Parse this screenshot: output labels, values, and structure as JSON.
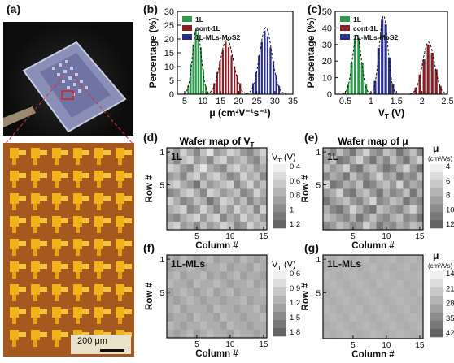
{
  "panel_labels": {
    "a": "(a)",
    "b": "(b)",
    "c": "(c)",
    "d": "(d)",
    "e": "(e)",
    "f": "(f)",
    "g": "(g)"
  },
  "scale_bar": "200 μm",
  "colors": {
    "1L": "#2e9a4a",
    "cont-1L": "#8b1e24",
    "1L-MLs-MoS2": "#2a2f8c"
  },
  "chart_data": [
    {
      "type": "bar",
      "id": "b",
      "xlabel": "μ (cm²V⁻¹s⁻¹)",
      "ylabel": "Percentage (%)",
      "xlim": [
        3,
        35
      ],
      "ylim": [
        0,
        30
      ],
      "xticks": [
        5,
        10,
        15,
        20,
        25,
        30,
        35
      ],
      "yticks": [
        0,
        5,
        10,
        15,
        20,
        25,
        30
      ],
      "legend": [
        "1L",
        "cont-1L",
        "1L-MLs-MoS2"
      ],
      "series": [
        {
          "name": "1L",
          "x": [
            6,
            6.7,
            7.4,
            8.1,
            8.8,
            9.5,
            10.2,
            10.9
          ],
          "values": [
            3,
            11,
            18,
            23,
            22,
            17,
            9,
            3
          ]
        },
        {
          "name": "cont-1L",
          "x": [
            13.2,
            14.0,
            14.8,
            15.6,
            16.4,
            17.2,
            18.0,
            18.8,
            19.6,
            20.4
          ],
          "values": [
            4,
            8,
            12,
            16,
            19,
            17,
            14,
            10,
            7,
            4
          ]
        },
        {
          "name": "1L-MLs-MoS2",
          "x": [
            24.0,
            24.8,
            25.6,
            26.4,
            27.2,
            28.0,
            28.8,
            29.6,
            30.4,
            31.2
          ],
          "values": [
            4,
            8,
            14,
            19,
            23,
            21,
            17,
            12,
            7,
            3
          ]
        }
      ]
    },
    {
      "type": "bar",
      "id": "c",
      "xlabel": "V_T (V)",
      "ylabel": "Percentage (%)",
      "xlim": [
        0.3,
        2.5
      ],
      "ylim": [
        0,
        50
      ],
      "xticks": [
        0.5,
        1.0,
        1.5,
        2.0,
        2.5
      ],
      "yticks": [
        0,
        10,
        20,
        30,
        40,
        50
      ],
      "legend": [
        "1L",
        "cont-1L",
        "1L-MLs-MoS2"
      ],
      "series": [
        {
          "name": "1L",
          "x": [
            0.55,
            0.62,
            0.69,
            0.76,
            0.83,
            0.9
          ],
          "values": [
            6,
            19,
            34,
            34,
            19,
            6
          ]
        },
        {
          "name": "cont-1L",
          "x": [
            1.88,
            1.96,
            2.04,
            2.12,
            2.2,
            2.28,
            2.36
          ],
          "values": [
            4,
            12,
            21,
            30,
            25,
            15,
            5
          ]
        },
        {
          "name": "1L-MLs-MoS2",
          "x": [
            1.08,
            1.15,
            1.22,
            1.29,
            1.36,
            1.43
          ],
          "values": [
            8,
            28,
            45,
            42,
            22,
            6
          ]
        }
      ]
    },
    {
      "type": "heatmap",
      "id": "d",
      "title": "Wafer map of V_T",
      "inset": "1L",
      "xlabel": "Column #",
      "ylabel": "Row #",
      "xticks": [
        5,
        10,
        15
      ],
      "yticks": [
        1,
        5
      ],
      "colorbar": {
        "label": "V_T (V)",
        "ticks": [
          0.4,
          0.6,
          0.8,
          1.0,
          1.2
        ]
      },
      "grid": [
        [
          0.7,
          0.9,
          0.6,
          0.8,
          1.0,
          0.7,
          0.5,
          0.9,
          0.8,
          0.6,
          0.7,
          0.9,
          1.0,
          0.8,
          0.6
        ],
        [
          0.8,
          1.0,
          0.7,
          0.6,
          0.9,
          0.8,
          1.0,
          0.7,
          0.6,
          0.9,
          0.8,
          0.7,
          0.9,
          1.0,
          0.7
        ],
        [
          0.6,
          0.7,
          0.9,
          1.0,
          0.7,
          0.5,
          0.8,
          0.9,
          1.0,
          0.7,
          0.6,
          0.8,
          0.7,
          0.9,
          0.8
        ],
        [
          0.9,
          0.8,
          1.0,
          0.7,
          0.6,
          0.9,
          0.7,
          0.6,
          0.8,
          1.0,
          0.9,
          0.6,
          0.8,
          0.7,
          1.0
        ],
        [
          0.7,
          0.6,
          0.8,
          0.9,
          1.1,
          0.7,
          0.9,
          0.8,
          0.7,
          0.6,
          1.0,
          0.8,
          0.6,
          0.9,
          0.7
        ],
        [
          1.0,
          0.9,
          0.7,
          0.6,
          0.8,
          1.0,
          0.6,
          0.7,
          0.9,
          0.8,
          0.7,
          1.0,
          0.9,
          0.6,
          0.8
        ],
        [
          0.6,
          0.8,
          1.0,
          0.9,
          0.7,
          0.8,
          1.1,
          0.9,
          0.6,
          0.7,
          0.9,
          0.7,
          1.0,
          0.8,
          0.9
        ],
        [
          0.8,
          0.7,
          0.6,
          1.0,
          0.9,
          0.6,
          0.8,
          1.0,
          0.7,
          0.9,
          0.6,
          0.8,
          0.7,
          1.0,
          0.6
        ],
        [
          0.9,
          1.0,
          0.8,
          0.7,
          0.6,
          0.9,
          0.7,
          0.6,
          1.0,
          0.8,
          0.9,
          0.6,
          0.8,
          0.7,
          0.9
        ],
        [
          0.7,
          0.6,
          0.9,
          0.8,
          1.0,
          0.7,
          0.9,
          0.8,
          0.6,
          0.7,
          1.0,
          0.9,
          0.6,
          0.8,
          0.7
        ]
      ]
    },
    {
      "type": "heatmap",
      "id": "e",
      "title": "Wafer map of μ",
      "inset": "1L",
      "xlabel": "Column #",
      "ylabel": "Row #",
      "xticks": [
        5,
        10,
        15
      ],
      "yticks": [
        1,
        5
      ],
      "colorbar": {
        "label": "μ (cm²/Vs)",
        "ticks": [
          4,
          6,
          8,
          10,
          12
        ]
      },
      "grid": [
        [
          8,
          10,
          7,
          9,
          11,
          8,
          6,
          9,
          10,
          7,
          8,
          11,
          9,
          7,
          10
        ],
        [
          9,
          7,
          11,
          10,
          8,
          6,
          9,
          11,
          8,
          10,
          7,
          9,
          11,
          8,
          6
        ],
        [
          7,
          9,
          8,
          6,
          10,
          11,
          8,
          7,
          9,
          11,
          10,
          8,
          6,
          9,
          11
        ],
        [
          10,
          8,
          9,
          11,
          7,
          9,
          10,
          8,
          6,
          9,
          8,
          11,
          9,
          10,
          7
        ],
        [
          6,
          11,
          10,
          8,
          9,
          7,
          11,
          10,
          8,
          7,
          9,
          6,
          10,
          8,
          9
        ],
        [
          9,
          8,
          6,
          10,
          11,
          8,
          7,
          9,
          11,
          8,
          10,
          9,
          7,
          11,
          8
        ],
        [
          11,
          9,
          8,
          7,
          9,
          10,
          8,
          6,
          10,
          9,
          7,
          8,
          11,
          9,
          10
        ],
        [
          8,
          10,
          11,
          9,
          6,
          8,
          10,
          11,
          7,
          8,
          9,
          10,
          8,
          6,
          9
        ],
        [
          7,
          8,
          9,
          10,
          8,
          11,
          9,
          7,
          9,
          10,
          8,
          7,
          10,
          9,
          11
        ],
        [
          10,
          9,
          7,
          8,
          10,
          9,
          6,
          8,
          11,
          9,
          10,
          8,
          9,
          7,
          8
        ]
      ]
    },
    {
      "type": "heatmap",
      "id": "f",
      "inset": "1L-MLs",
      "xlabel": "Column #",
      "ylabel": "Row #",
      "xticks": [
        5,
        10,
        15
      ],
      "yticks": [
        1,
        5
      ],
      "colorbar": {
        "label": "V_T (V)",
        "ticks": [
          0.6,
          0.9,
          1.2,
          1.5,
          1.8
        ]
      },
      "grid": [
        [
          1.2,
          1.3,
          1.1,
          1.2,
          1.3,
          1.2,
          1.1,
          1.3,
          1.2,
          1.2,
          1.3,
          1.1,
          1.2,
          1.3,
          1.2
        ],
        [
          1.3,
          1.2,
          1.2,
          1.1,
          1.2,
          1.3,
          1.2,
          1.2,
          1.1,
          1.3,
          1.2,
          1.2,
          1.3,
          1.1,
          1.2
        ],
        [
          1.2,
          1.1,
          1.3,
          1.2,
          1.2,
          1.1,
          1.3,
          1.2,
          1.3,
          1.2,
          1.1,
          1.3,
          1.2,
          1.2,
          1.3
        ],
        [
          1.1,
          1.2,
          1.2,
          1.3,
          1.1,
          1.2,
          1.2,
          1.1,
          1.2,
          1.3,
          1.2,
          1.2,
          1.1,
          1.3,
          1.2
        ],
        [
          1.3,
          1.2,
          1.1,
          1.2,
          1.3,
          1.2,
          1.1,
          1.3,
          1.2,
          1.1,
          1.3,
          1.2,
          1.2,
          1.2,
          1.1
        ],
        [
          1.2,
          1.3,
          1.2,
          1.1,
          1.2,
          1.3,
          1.2,
          1.2,
          1.3,
          1.2,
          1.2,
          1.1,
          1.3,
          1.2,
          1.2
        ],
        [
          1.2,
          1.1,
          1.3,
          1.2,
          1.2,
          1.2,
          1.3,
          1.1,
          1.2,
          1.2,
          1.3,
          1.2,
          1.2,
          1.1,
          1.3
        ],
        [
          1.3,
          1.2,
          1.2,
          1.3,
          1.1,
          1.2,
          1.2,
          1.3,
          1.1,
          1.2,
          1.2,
          1.3,
          1.2,
          1.2,
          1.1
        ],
        [
          1.1,
          1.2,
          1.3,
          1.2,
          1.2,
          1.1,
          1.2,
          1.2,
          1.3,
          1.1,
          1.2,
          1.2,
          1.3,
          1.2,
          1.2
        ],
        [
          1.2,
          1.3,
          1.2,
          1.1,
          1.3,
          1.2,
          1.1,
          1.2,
          1.2,
          1.3,
          1.1,
          1.2,
          1.2,
          1.3,
          1.2
        ]
      ]
    },
    {
      "type": "heatmap",
      "id": "g",
      "inset": "1L-MLs",
      "xlabel": "Column #",
      "ylabel": "Row #",
      "xticks": [
        5,
        10,
        15
      ],
      "yticks": [
        1,
        5
      ],
      "colorbar": {
        "label": "μ (cm²/Vs)",
        "ticks": [
          14,
          21,
          28,
          35,
          42
        ]
      },
      "grid": [
        [
          27,
          28,
          26,
          27,
          28,
          27,
          26,
          28,
          27,
          27,
          26,
          28,
          27,
          26,
          28
        ],
        [
          28,
          27,
          27,
          26,
          27,
          28,
          27,
          26,
          28,
          27,
          28,
          27,
          26,
          28,
          27
        ],
        [
          26,
          27,
          28,
          27,
          26,
          27,
          28,
          27,
          27,
          26,
          27,
          28,
          27,
          27,
          26
        ],
        [
          27,
          26,
          27,
          28,
          27,
          26,
          27,
          28,
          26,
          27,
          27,
          26,
          28,
          27,
          27
        ],
        [
          28,
          27,
          26,
          27,
          28,
          27,
          26,
          27,
          28,
          27,
          26,
          27,
          27,
          28,
          26
        ],
        [
          27,
          28,
          27,
          26,
          27,
          28,
          27,
          26,
          27,
          28,
          27,
          26,
          27,
          27,
          28
        ],
        [
          26,
          27,
          28,
          27,
          27,
          26,
          28,
          27,
          26,
          27,
          28,
          27,
          26,
          28,
          27
        ],
        [
          27,
          26,
          27,
          28,
          26,
          27,
          27,
          28,
          27,
          26,
          27,
          28,
          27,
          26,
          27
        ],
        [
          28,
          27,
          26,
          27,
          28,
          27,
          26,
          27,
          28,
          27,
          26,
          27,
          28,
          27,
          26
        ],
        [
          27,
          28,
          27,
          26,
          27,
          28,
          27,
          26,
          27,
          28,
          27,
          26,
          27,
          28,
          27
        ]
      ]
    }
  ]
}
